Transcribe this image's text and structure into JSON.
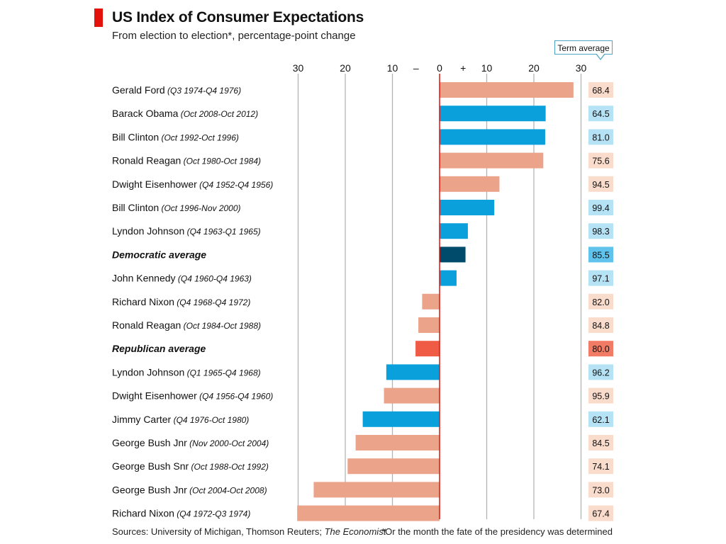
{
  "header": {
    "title": "US Index of Consumer Expectations",
    "subtitle": "From election to election*, percentage-point change",
    "term_average_label": "Term average"
  },
  "footer": {
    "sources_prefix": "Sources: University of Michigan, Thomson Reuters; ",
    "sources_italic": "The Economist",
    "footnote": "*Or the month the fate of the presidency was determined"
  },
  "colors": {
    "republican": "#eba38a",
    "democrat": "#0aa0dc",
    "democratic_average": "#004a6b",
    "republican_average": "#f05b45",
    "zero_line": "#e3120b",
    "grid": "#b3b3b3",
    "box_republican": "#fadccd",
    "box_democrat": "#b5e2f5",
    "box_democratic_average": "#5fc3ee",
    "box_republican_average": "#f17b64"
  },
  "chart_data": {
    "type": "bar",
    "orientation": "horizontal",
    "title": "US Index of Consumer Expectations",
    "subtitle": "From election to election*, percentage-point change",
    "xlim": [
      -30,
      30
    ],
    "x_ticks": [
      {
        "value": -30,
        "label": "30"
      },
      {
        "value": -20,
        "label": "20"
      },
      {
        "value": -10,
        "label": "10"
      },
      {
        "value": -5,
        "label": "–"
      },
      {
        "value": 0,
        "label": "0"
      },
      {
        "value": 5,
        "label": "+"
      },
      {
        "value": 10,
        "label": "10"
      },
      {
        "value": 20,
        "label": "20"
      },
      {
        "value": 30,
        "label": "30"
      }
    ],
    "grid": true,
    "bars": [
      {
        "name": "Gerald Ford",
        "period": "(Q3 1974-Q4 1976)",
        "value": 28.4,
        "term_average": "68.4",
        "party": "republican",
        "bold": false
      },
      {
        "name": "Barack Obama",
        "period": "(Oct 2008-Oct 2012)",
        "value": 22.5,
        "term_average": "64.5",
        "party": "democrat",
        "bold": false
      },
      {
        "name": "Bill Clinton",
        "period": "(Oct 1992-Oct 1996)",
        "value": 22.4,
        "term_average": "81.0",
        "party": "democrat",
        "bold": false
      },
      {
        "name": "Ronald Reagan",
        "period": "(Oct 1980-Oct 1984)",
        "value": 22.0,
        "term_average": "75.6",
        "party": "republican",
        "bold": false
      },
      {
        "name": "Dwight Eisenhower",
        "period": "(Q4 1952-Q4 1956)",
        "value": 12.7,
        "term_average": "94.5",
        "party": "republican",
        "bold": false
      },
      {
        "name": "Bill Clinton",
        "period": "(Oct 1996-Nov 2000)",
        "value": 11.6,
        "term_average": "99.4",
        "party": "democrat",
        "bold": false
      },
      {
        "name": "Lyndon Johnson",
        "period": "(Q4 1963-Q1 1965)",
        "value": 6.0,
        "term_average": "98.3",
        "party": "democrat",
        "bold": false
      },
      {
        "name": "Democratic average",
        "period": "",
        "value": 5.5,
        "term_average": "85.5",
        "party": "democratic_average",
        "bold": true
      },
      {
        "name": "John Kennedy",
        "period": "(Q4 1960-Q4 1963)",
        "value": 3.6,
        "term_average": "97.1",
        "party": "democrat",
        "bold": false
      },
      {
        "name": "Richard Nixon",
        "period": "(Q4 1968-Q4 1972)",
        "value": -3.7,
        "term_average": "82.0",
        "party": "republican",
        "bold": false
      },
      {
        "name": "Ronald Reagan",
        "period": "(Oct 1984-Oct 1988)",
        "value": -4.5,
        "term_average": "84.8",
        "party": "republican",
        "bold": false
      },
      {
        "name": "Republican average",
        "period": "",
        "value": -5.1,
        "term_average": "80.0",
        "party": "republican_average",
        "bold": true
      },
      {
        "name": "Lyndon Johnson",
        "period": "(Q1 1965-Q4 1968)",
        "value": -11.3,
        "term_average": "96.2",
        "party": "democrat",
        "bold": false
      },
      {
        "name": "Dwight Eisenhower",
        "period": "(Q4 1956-Q4 1960)",
        "value": -11.8,
        "term_average": "95.9",
        "party": "republican",
        "bold": false
      },
      {
        "name": "Jimmy Carter",
        "period": "(Q4 1976-Oct 1980)",
        "value": -16.3,
        "term_average": "62.1",
        "party": "democrat",
        "bold": false
      },
      {
        "name": "George Bush Jnr",
        "period": "(Nov 2000-Oct 2004)",
        "value": -17.8,
        "term_average": "84.5",
        "party": "republican",
        "bold": false
      },
      {
        "name": "George Bush Snr",
        "period": "(Oct 1988-Oct 1992)",
        "value": -19.5,
        "term_average": "74.1",
        "party": "republican",
        "bold": false
      },
      {
        "name": "George Bush Jnr",
        "period": "(Oct 2004-Oct 2008)",
        "value": -26.7,
        "term_average": "73.0",
        "party": "republican",
        "bold": false
      },
      {
        "name": "Richard Nixon",
        "period": "(Q4 1972-Q3 1974)",
        "value": -30.2,
        "term_average": "67.4",
        "party": "republican",
        "bold": false
      }
    ]
  }
}
